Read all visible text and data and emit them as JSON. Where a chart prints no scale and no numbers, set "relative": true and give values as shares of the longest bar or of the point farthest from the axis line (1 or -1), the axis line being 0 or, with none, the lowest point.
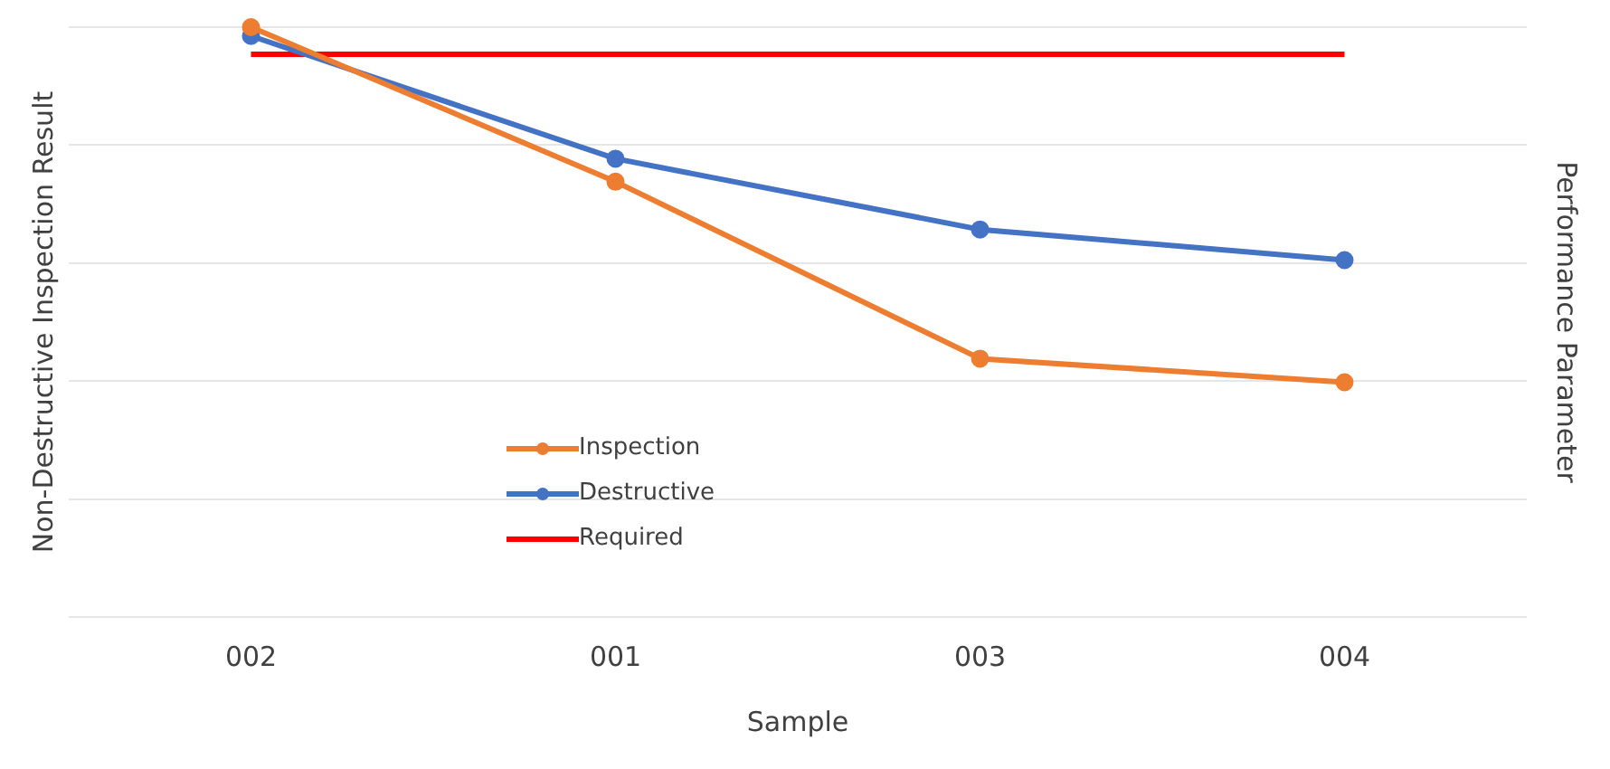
{
  "chart_data": {
    "type": "line",
    "xlabel": "Sample",
    "ylabel": "Non-Destructive Inspection Result",
    "y2label": "Performance Parameter",
    "relative": true,
    "grid": "y",
    "legend": "bottom left",
    "categories": [
      "002",
      "001",
      "003",
      "004"
    ],
    "series": [
      {
        "name": "Inspection",
        "color": "#ed7d31",
        "marker": "circle",
        "values": [
          1,
          0.738,
          0.438,
          0.398
        ]
      },
      {
        "name": "Destructive",
        "color": "#4472c4",
        "marker": "circle",
        "values": [
          0.985,
          0.777,
          0.657,
          0.605
        ]
      },
      {
        "name": "Required",
        "color": "#ff0000",
        "marker": "none",
        "values": [
          0.954,
          0.954,
          0.954,
          0.954
        ]
      }
    ]
  }
}
